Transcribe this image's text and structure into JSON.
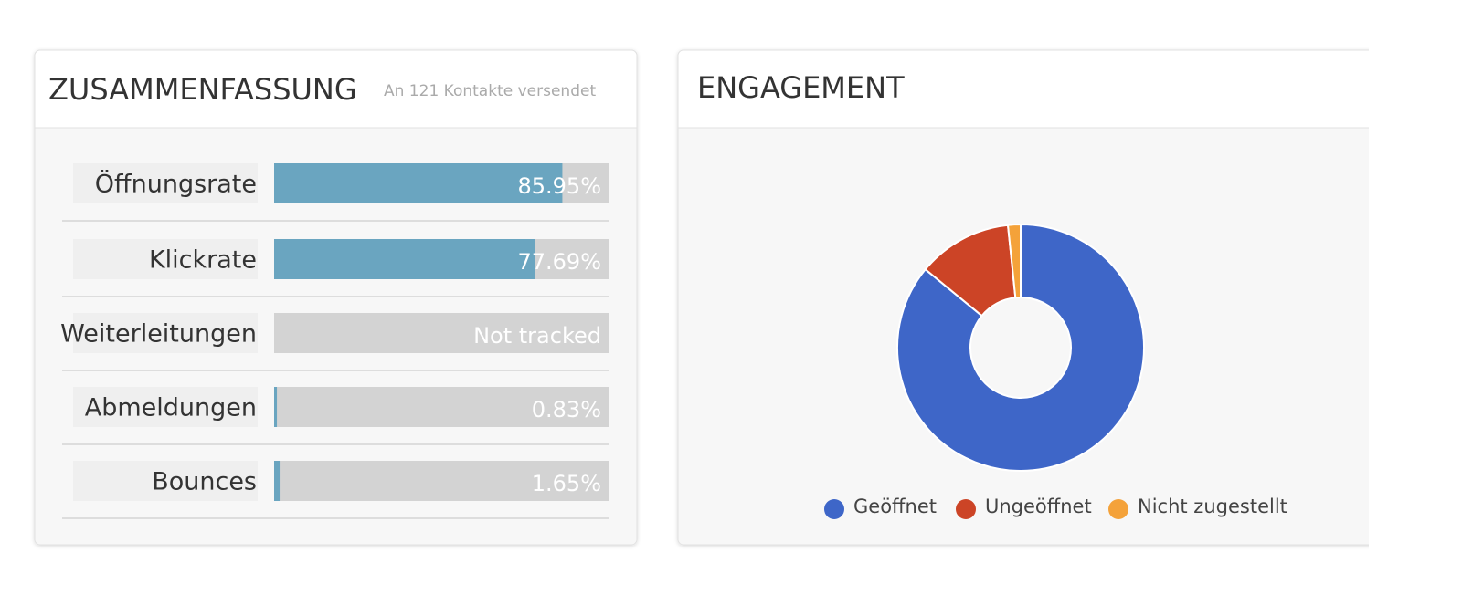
{
  "chart_data": [
    {
      "type": "hbar",
      "title": "ZUSAMMENFASSUNG",
      "subtitle": "An 121 Kontakte versendet",
      "categories": [
        "Öffnungsrate",
        "Klickrate",
        "Weiterleitungen",
        "Abmeldungen",
        "Bounces"
      ],
      "values": [
        85.95,
        77.69,
        null,
        0.83,
        1.65
      ],
      "value_labels": [
        "85.95%",
        "77.69%",
        "Not tracked",
        "0.83%",
        "1.65%"
      ],
      "xlim": [
        0,
        100
      ],
      "color": "#6aa5c0"
    },
    {
      "type": "donut",
      "title": "ENGAGEMENT",
      "categories": [
        "Geöffnet",
        "Ungeöffnet",
        "Nicht zugestellt"
      ],
      "values": [
        85.95,
        12.4,
        1.65
      ],
      "colors": [
        "#3e66c8",
        "#cc4426",
        "#f4a23a"
      ]
    }
  ]
}
